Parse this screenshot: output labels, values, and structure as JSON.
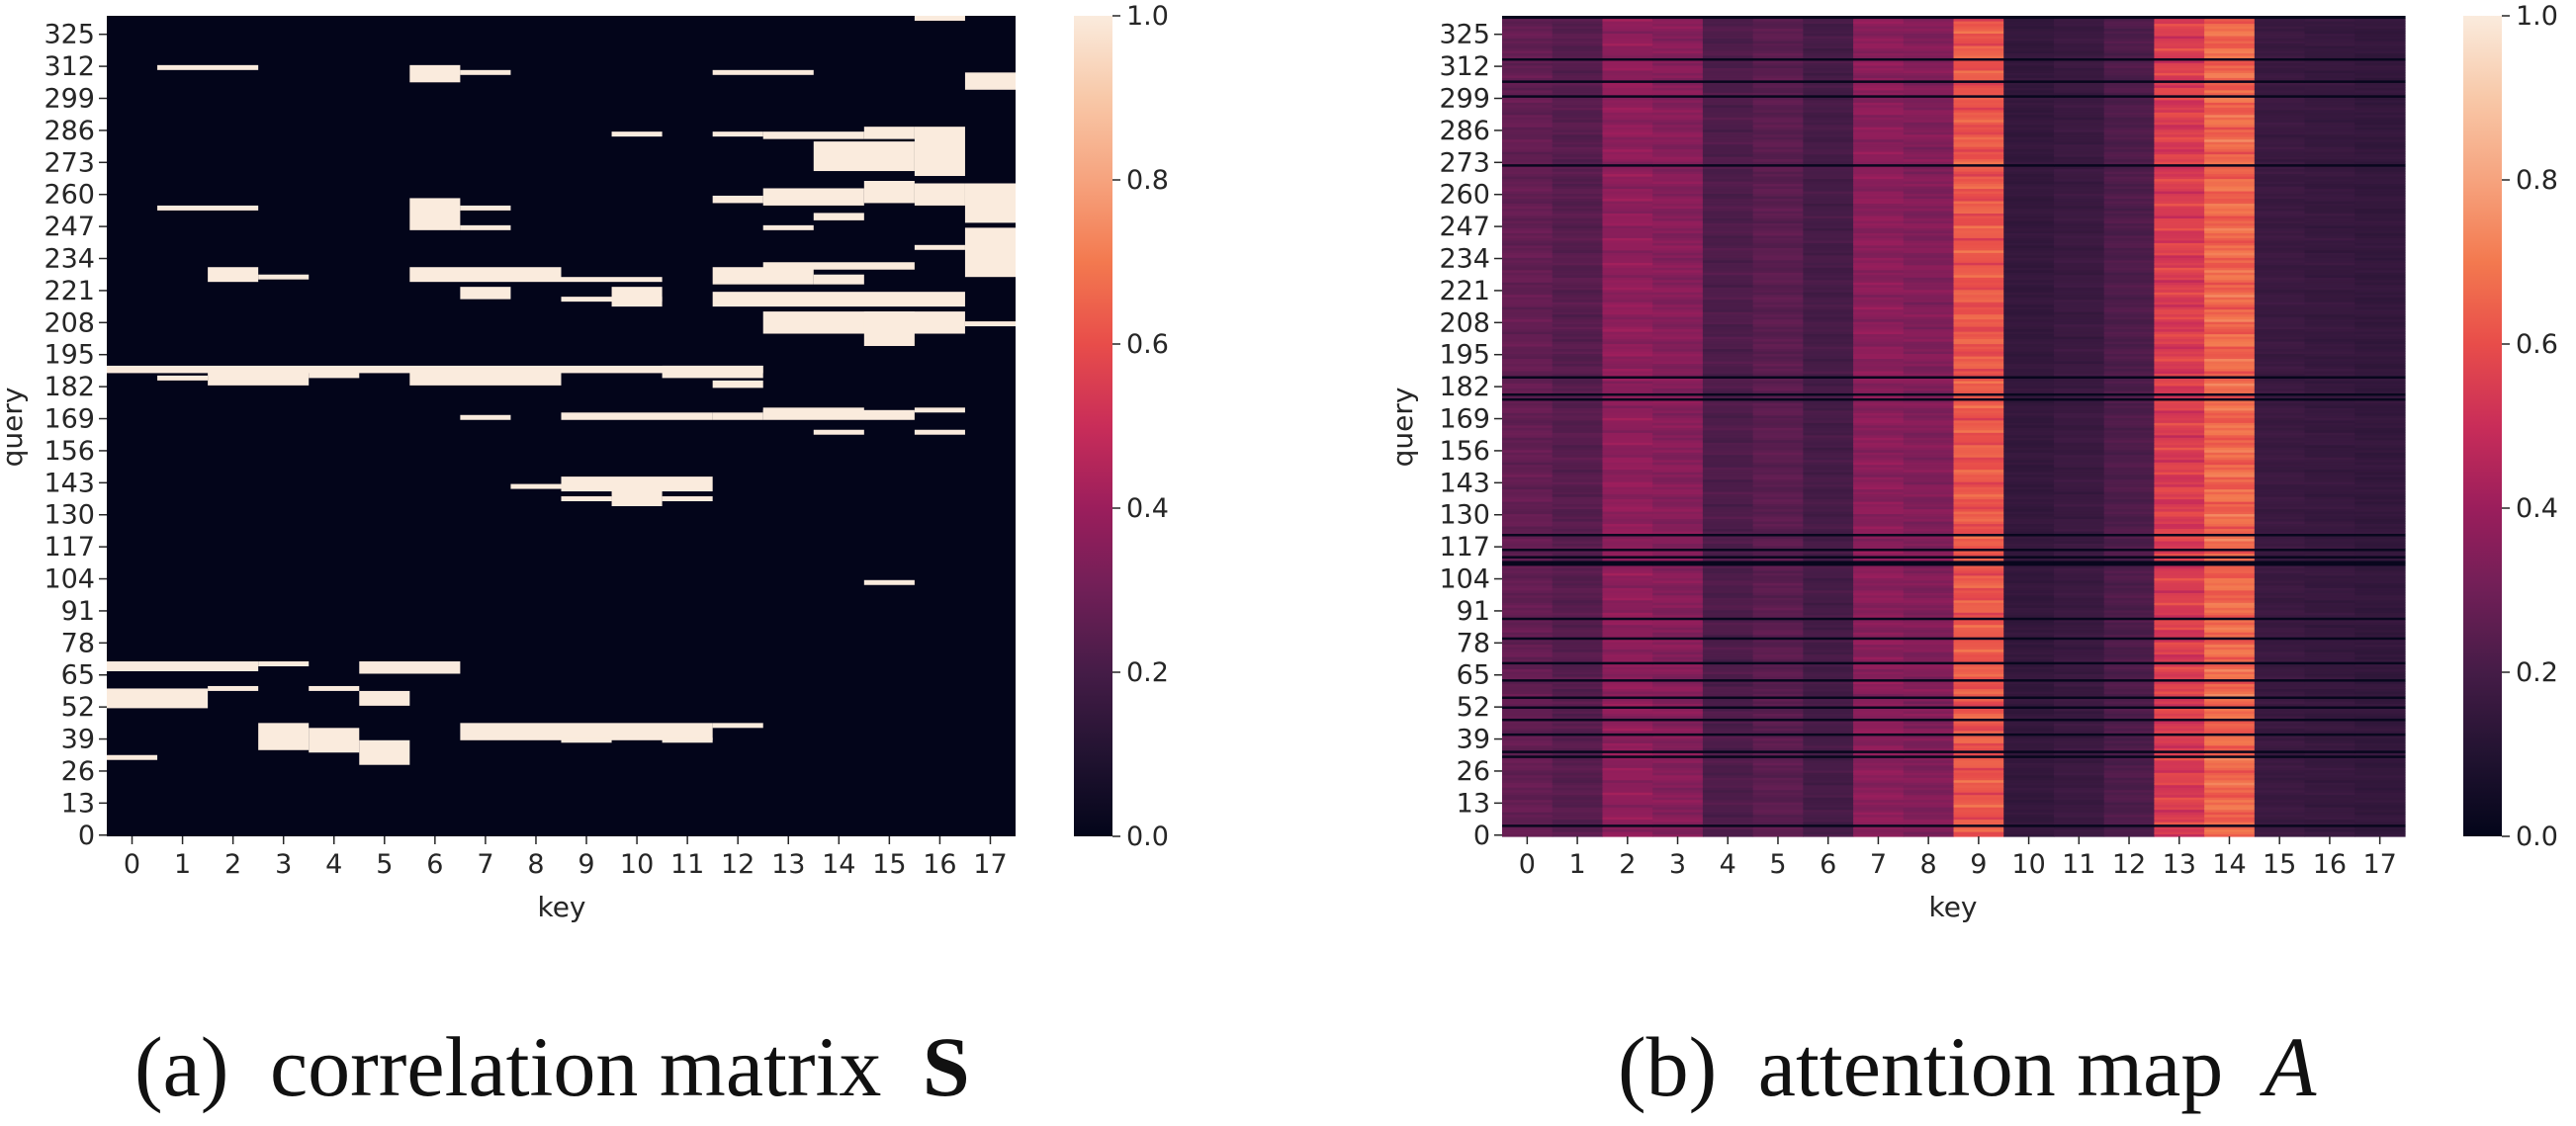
{
  "chart_data": [
    {
      "type": "heatmap",
      "caption_prefix": "(a)",
      "caption_text": "correlation matrix",
      "caption_symbol": "S",
      "xlabel": "key",
      "ylabel": "query",
      "x_categories": [
        "0",
        "1",
        "2",
        "3",
        "4",
        "5",
        "6",
        "7",
        "8",
        "9",
        "10",
        "11",
        "12",
        "13",
        "14",
        "15",
        "16",
        "17"
      ],
      "y_tick_labels": [
        "0",
        "13",
        "26",
        "39",
        "52",
        "65",
        "78",
        "91",
        "104",
        "117",
        "130",
        "143",
        "156",
        "169",
        "182",
        "195",
        "208",
        "221",
        "234",
        "247",
        "260",
        "273",
        "286",
        "299",
        "312",
        "325"
      ],
      "y_range": [
        0,
        333
      ],
      "value_range": [
        0.0,
        1.0
      ],
      "colormap": "rocket",
      "colorbar_ticks": [
        "0.0",
        "0.2",
        "0.4",
        "0.6",
        "0.8",
        "1.0"
      ],
      "background_value": 0.0,
      "ones": [
        {
          "cols": [
            16,
            16
          ],
          "rows": [
            331,
            332
          ]
        },
        {
          "cols": [
            1,
            2
          ],
          "rows": [
            311,
            312
          ]
        },
        {
          "cols": [
            6,
            6
          ],
          "rows": [
            306,
            312
          ]
        },
        {
          "cols": [
            7,
            7
          ],
          "rows": [
            309,
            310
          ]
        },
        {
          "cols": [
            12,
            13
          ],
          "rows": [
            309,
            310
          ]
        },
        {
          "cols": [
            17,
            17
          ],
          "rows": [
            303,
            309
          ]
        },
        {
          "cols": [
            10,
            10
          ],
          "rows": [
            284,
            285
          ]
        },
        {
          "cols": [
            12,
            12
          ],
          "rows": [
            284,
            285
          ]
        },
        {
          "cols": [
            13,
            14
          ],
          "rows": [
            283,
            285
          ]
        },
        {
          "cols": [
            15,
            15
          ],
          "rows": [
            283,
            287
          ]
        },
        {
          "cols": [
            16,
            16
          ],
          "rows": [
            268,
            287
          ]
        },
        {
          "cols": [
            14,
            15
          ],
          "rows": [
            270,
            281
          ]
        },
        {
          "cols": [
            17,
            17
          ],
          "rows": [
            249,
            264
          ]
        },
        {
          "cols": [
            13,
            14
          ],
          "rows": [
            256,
            262
          ]
        },
        {
          "cols": [
            12,
            12
          ],
          "rows": [
            257,
            259
          ]
        },
        {
          "cols": [
            15,
            15
          ],
          "rows": [
            257,
            265
          ]
        },
        {
          "cols": [
            16,
            16
          ],
          "rows": [
            256,
            264
          ]
        },
        {
          "cols": [
            1,
            2
          ],
          "rows": [
            254,
            255
          ]
        },
        {
          "cols": [
            6,
            6
          ],
          "rows": [
            246,
            258
          ]
        },
        {
          "cols": [
            7,
            7
          ],
          "rows": [
            254,
            255
          ]
        },
        {
          "cols": [
            7,
            7
          ],
          "rows": [
            246,
            247
          ]
        },
        {
          "cols": [
            13,
            13
          ],
          "rows": [
            246,
            247
          ]
        },
        {
          "cols": [
            14,
            14
          ],
          "rows": [
            250,
            252
          ]
        },
        {
          "cols": [
            16,
            16
          ],
          "rows": [
            238,
            239
          ]
        },
        {
          "cols": [
            13,
            15
          ],
          "rows": [
            230,
            232
          ]
        },
        {
          "cols": [
            17,
            17
          ],
          "rows": [
            227,
            246
          ]
        },
        {
          "cols": [
            2,
            2
          ],
          "rows": [
            225,
            230
          ]
        },
        {
          "cols": [
            3,
            3
          ],
          "rows": [
            226,
            227
          ]
        },
        {
          "cols": [
            6,
            8
          ],
          "rows": [
            225,
            230
          ]
        },
        {
          "cols": [
            9,
            10
          ],
          "rows": [
            225,
            226
          ]
        },
        {
          "cols": [
            12,
            13
          ],
          "rows": [
            224,
            230
          ]
        },
        {
          "cols": [
            14,
            14
          ],
          "rows": [
            224,
            227
          ]
        },
        {
          "cols": [
            7,
            7
          ],
          "rows": [
            218,
            222
          ]
        },
        {
          "cols": [
            9,
            10
          ],
          "rows": [
            217,
            218
          ]
        },
        {
          "cols": [
            10,
            10
          ],
          "rows": [
            215,
            222
          ]
        },
        {
          "cols": [
            12,
            16
          ],
          "rows": [
            215,
            220
          ]
        },
        {
          "cols": [
            13,
            16
          ],
          "rows": [
            204,
            212
          ]
        },
        {
          "cols": [
            15,
            15
          ],
          "rows": [
            199,
            212
          ]
        },
        {
          "cols": [
            17,
            17
          ],
          "rows": [
            207,
            208
          ]
        },
        {
          "cols": [
            0,
            12
          ],
          "rows": [
            188,
            190
          ]
        },
        {
          "cols": [
            1,
            1
          ],
          "rows": [
            185,
            186
          ]
        },
        {
          "cols": [
            2,
            3
          ],
          "rows": [
            183,
            188
          ]
        },
        {
          "cols": [
            4,
            4
          ],
          "rows": [
            186,
            188
          ]
        },
        {
          "cols": [
            6,
            8
          ],
          "rows": [
            183,
            189
          ]
        },
        {
          "cols": [
            11,
            12
          ],
          "rows": [
            186,
            190
          ]
        },
        {
          "cols": [
            12,
            12
          ],
          "rows": [
            182,
            184
          ]
        },
        {
          "cols": [
            9,
            11
          ],
          "rows": [
            169,
            171
          ]
        },
        {
          "cols": [
            12,
            12
          ],
          "rows": [
            169,
            171
          ]
        },
        {
          "cols": [
            13,
            15
          ],
          "rows": [
            169,
            172
          ]
        },
        {
          "cols": [
            7,
            7
          ],
          "rows": [
            169,
            170
          ]
        },
        {
          "cols": [
            14,
            14
          ],
          "rows": [
            163,
            164
          ]
        },
        {
          "cols": [
            16,
            16
          ],
          "rows": [
            163,
            164
          ]
        },
        {
          "cols": [
            13,
            14
          ],
          "rows": [
            172,
            173
          ]
        },
        {
          "cols": [
            16,
            16
          ],
          "rows": [
            172,
            173
          ]
        },
        {
          "cols": [
            8,
            9
          ],
          "rows": [
            141,
            142
          ]
        },
        {
          "cols": [
            9,
            11
          ],
          "rows": [
            140,
            145
          ]
        },
        {
          "cols": [
            10,
            10
          ],
          "rows": [
            134,
            140
          ]
        },
        {
          "cols": [
            9,
            9
          ],
          "rows": [
            136,
            137
          ]
        },
        {
          "cols": [
            11,
            11
          ],
          "rows": [
            136,
            137
          ]
        },
        {
          "cols": [
            15,
            15
          ],
          "rows": [
            102,
            103
          ]
        },
        {
          "cols": [
            0,
            2
          ],
          "rows": [
            67,
            70
          ]
        },
        {
          "cols": [
            3,
            3
          ],
          "rows": [
            69,
            70
          ]
        },
        {
          "cols": [
            5,
            6
          ],
          "rows": [
            66,
            70
          ]
        },
        {
          "cols": [
            2,
            2
          ],
          "rows": [
            59,
            60
          ]
        },
        {
          "cols": [
            4,
            4
          ],
          "rows": [
            59,
            60
          ]
        },
        {
          "cols": [
            0,
            1
          ],
          "rows": [
            52,
            59
          ]
        },
        {
          "cols": [
            5,
            5
          ],
          "rows": [
            53,
            58
          ]
        },
        {
          "cols": [
            3,
            3
          ],
          "rows": [
            35,
            45
          ]
        },
        {
          "cols": [
            4,
            4
          ],
          "rows": [
            34,
            43
          ]
        },
        {
          "cols": [
            5,
            5
          ],
          "rows": [
            29,
            38
          ]
        },
        {
          "cols": [
            7,
            11
          ],
          "rows": [
            39,
            45
          ]
        },
        {
          "cols": [
            12,
            12
          ],
          "rows": [
            44,
            45
          ]
        },
        {
          "cols": [
            9,
            9
          ],
          "rows": [
            38,
            39
          ]
        },
        {
          "cols": [
            11,
            11
          ],
          "rows": [
            38,
            39
          ]
        },
        {
          "cols": [
            0,
            0
          ],
          "rows": [
            31,
            32
          ]
        }
      ]
    },
    {
      "type": "heatmap",
      "caption_prefix": "(b)",
      "caption_text": "attention map",
      "caption_symbol": "A",
      "xlabel": "key",
      "ylabel": "query",
      "x_categories": [
        "0",
        "1",
        "2",
        "3",
        "4",
        "5",
        "6",
        "7",
        "8",
        "9",
        "10",
        "11",
        "12",
        "13",
        "14",
        "15",
        "16",
        "17"
      ],
      "y_tick_labels": [
        "0",
        "13",
        "26",
        "39",
        "52",
        "65",
        "78",
        "91",
        "104",
        "117",
        "130",
        "143",
        "156",
        "169",
        "182",
        "195",
        "208",
        "221",
        "234",
        "247",
        "260",
        "273",
        "286",
        "299",
        "312",
        "325"
      ],
      "y_range": [
        0,
        333
      ],
      "value_range": [
        0.0,
        1.0
      ],
      "colormap": "rocket",
      "colorbar_ticks": [
        "0.0",
        "0.2",
        "0.4",
        "0.6",
        "0.8",
        "1.0"
      ],
      "column_mean_values": [
        0.27,
        0.24,
        0.37,
        0.35,
        0.22,
        0.25,
        0.2,
        0.36,
        0.34,
        0.62,
        0.15,
        0.17,
        0.22,
        0.55,
        0.66,
        0.17,
        0.16,
        0.15
      ],
      "dark_rows": [
        4,
        32,
        34,
        41,
        47,
        52,
        56,
        63,
        70,
        80,
        88,
        110,
        111,
        113,
        116,
        122,
        177,
        179,
        186,
        272,
        300,
        306,
        315,
        332
      ]
    }
  ]
}
